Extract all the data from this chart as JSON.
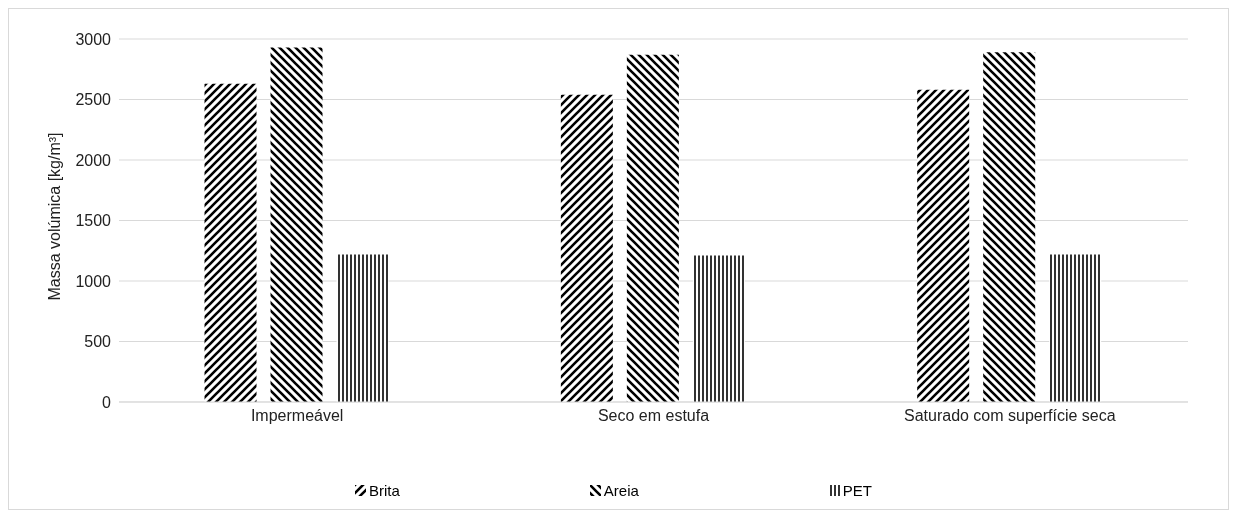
{
  "chart_data": {
    "type": "bar",
    "ylabel": "Massa volúmica [kg/m³]",
    "categories": [
      "Impermeável",
      "Seco em estufa",
      "Saturado com superfície seca"
    ],
    "series": [
      {
        "name": "Brita",
        "color": "#000000",
        "values": [
          2630,
          2540,
          2580
        ]
      },
      {
        "name": "Areia",
        "color": "#000000",
        "values": [
          2930,
          2870,
          2890
        ]
      },
      {
        "name": "PET",
        "color": "#000000",
        "values": [
          1220,
          1210,
          1220
        ]
      }
    ],
    "ylim": [
      0,
      3000
    ],
    "yticks": [
      0,
      500,
      1000,
      1500,
      2000,
      2500,
      3000
    ],
    "grid": "y",
    "legend": "bottom"
  }
}
